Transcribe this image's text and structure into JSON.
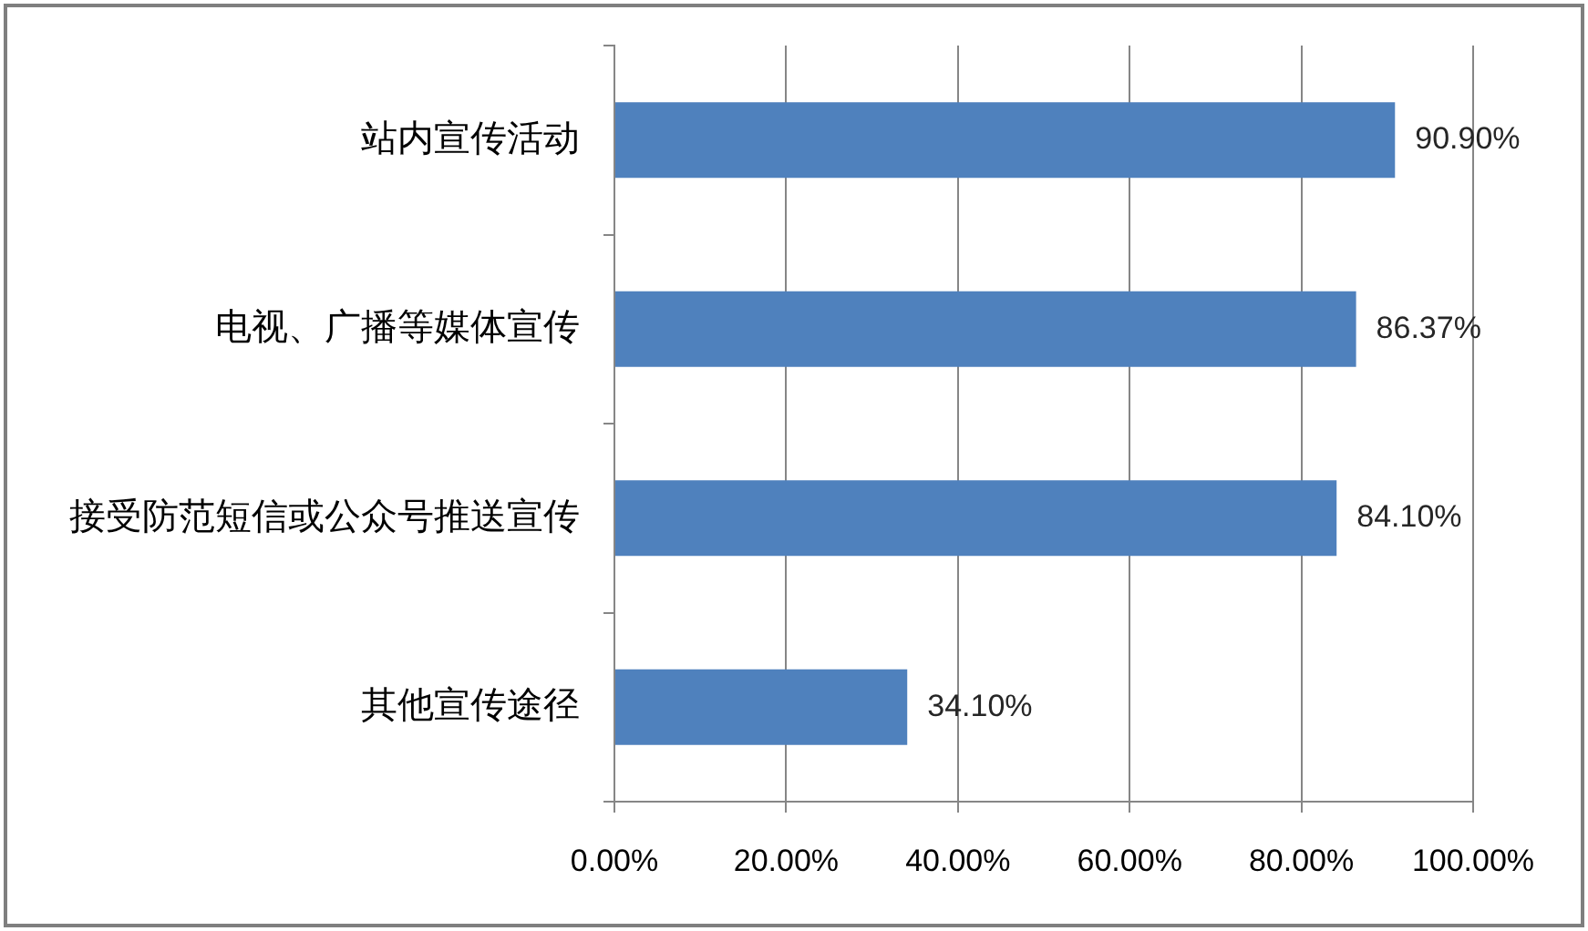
{
  "chart_data": {
    "type": "bar",
    "orientation": "horizontal",
    "categories": [
      "站内宣传活动",
      "电视、广播等媒体宣传",
      "接受防范短信或公众号推送宣传",
      "其他宣传途径"
    ],
    "values": [
      90.9,
      86.37,
      84.1,
      34.1
    ],
    "value_labels": [
      "90.90%",
      "86.37%",
      "84.10%",
      "34.10%"
    ],
    "color": "#4f81bd",
    "xlim": [
      0,
      100
    ],
    "xticks": [
      {
        "value": 0,
        "label": "0.00%"
      },
      {
        "value": 20,
        "label": "20.00%"
      },
      {
        "value": 40,
        "label": "40.00%"
      },
      {
        "value": 60,
        "label": "60.00%"
      },
      {
        "value": 80,
        "label": "80.00%"
      },
      {
        "value": 100,
        "label": "100.00%"
      }
    ],
    "grid": "x"
  }
}
